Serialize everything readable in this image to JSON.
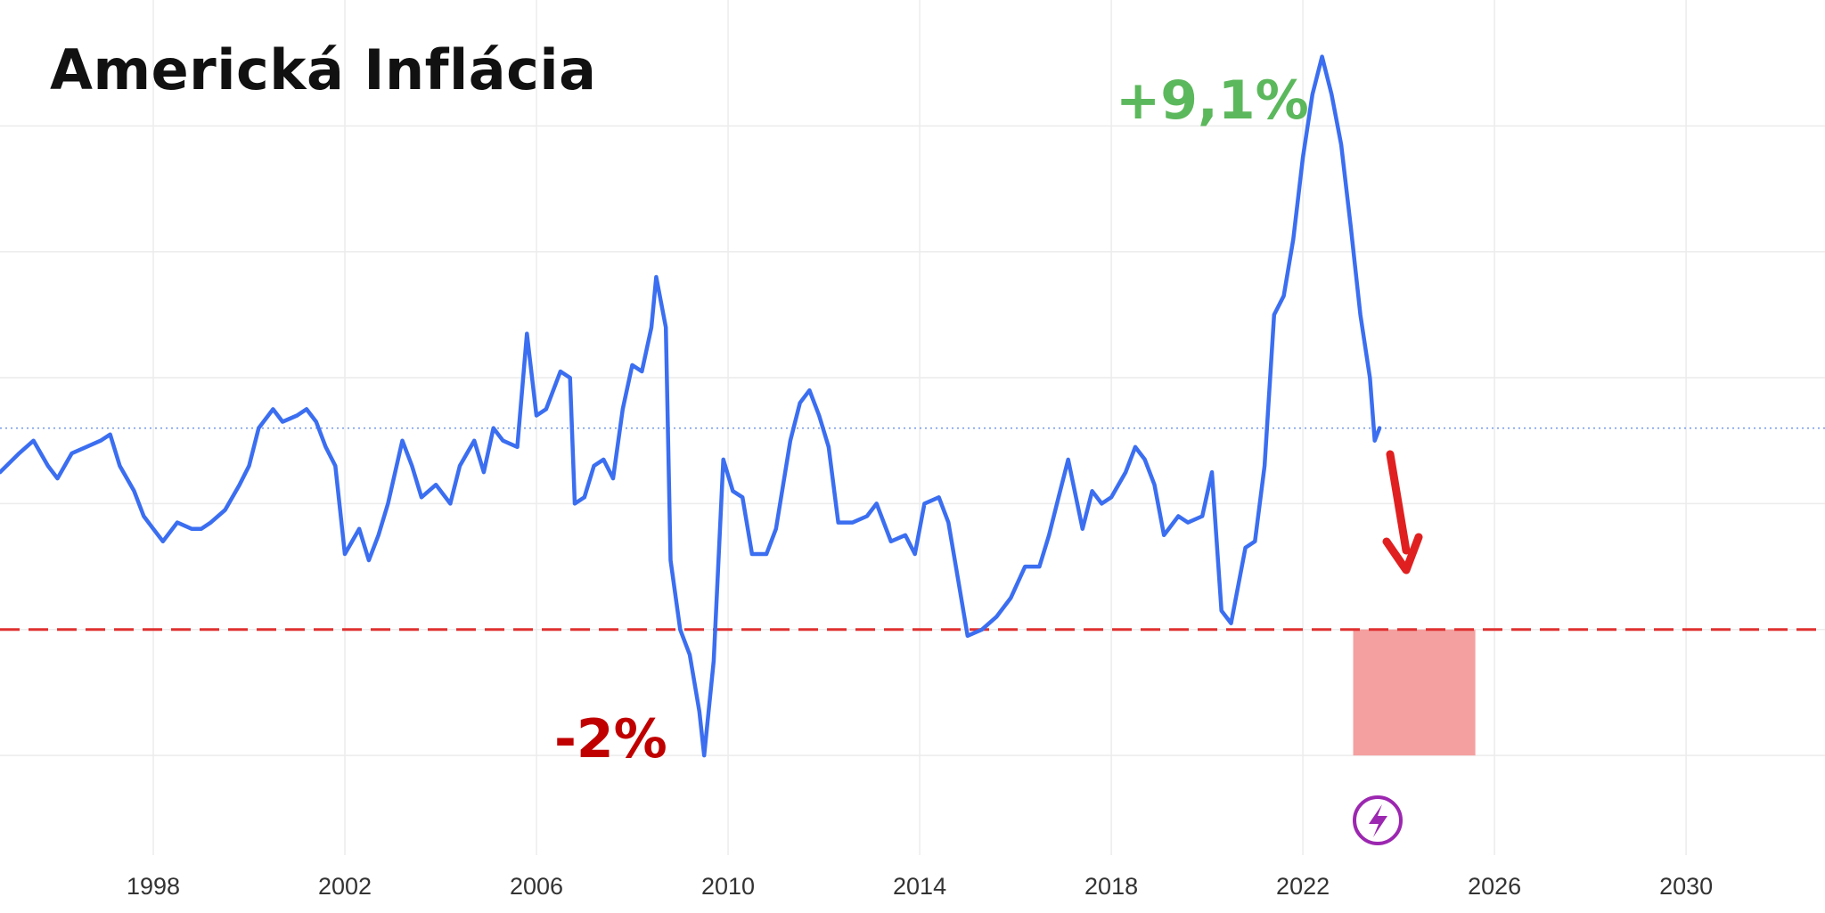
{
  "page": {
    "title": "Americká Inflácia"
  },
  "colors": {
    "line": "#3b6ef0",
    "peak_label": "#5cb85c",
    "low_label": "#c00000",
    "target_line": "#e03030",
    "target_zone": "#f4a0a0",
    "arrow": "#e02020",
    "grid": "#ececec",
    "last_value_line": "#6f95e8",
    "badge": "#9c27b0"
  },
  "annotations": {
    "peak_label": "+9,1%",
    "low_label": "-2%",
    "arrow_icon": "down-arrow-icon",
    "badge_icon": "lightning-icon"
  },
  "chart_data": {
    "type": "line",
    "title": "Americká Inflácia",
    "xlabel": "",
    "ylabel": "",
    "x_ticks": [
      "1998",
      "2002",
      "2006",
      "2010",
      "2014",
      "2018",
      "2022",
      "2026",
      "2030"
    ],
    "xlim": [
      1994.8,
      2032.9
    ],
    "ylim": [
      -3.3,
      10.0
    ],
    "grid": true,
    "reference_line": {
      "y": 0,
      "style": "dashed"
    },
    "target_zone": {
      "x": [
        2023.05,
        2025.6
      ],
      "y": [
        -2.0,
        0
      ]
    },
    "series": [
      {
        "name": "",
        "points": [
          [
            1994.8,
            2.5
          ],
          [
            1995.2,
            2.8
          ],
          [
            1995.5,
            3.0
          ],
          [
            1995.8,
            2.6
          ],
          [
            1996.0,
            2.4
          ],
          [
            1996.3,
            2.8
          ],
          [
            1996.6,
            2.9
          ],
          [
            1996.9,
            3.0
          ],
          [
            1997.1,
            3.1
          ],
          [
            1997.3,
            2.6
          ],
          [
            1997.6,
            2.2
          ],
          [
            1997.8,
            1.8
          ],
          [
            1998.0,
            1.6
          ],
          [
            1998.2,
            1.4
          ],
          [
            1998.5,
            1.7
          ],
          [
            1998.8,
            1.6
          ],
          [
            1999.0,
            1.6
          ],
          [
            1999.2,
            1.7
          ],
          [
            1999.5,
            1.9
          ],
          [
            1999.8,
            2.3
          ],
          [
            2000.0,
            2.6
          ],
          [
            2000.2,
            3.2
          ],
          [
            2000.5,
            3.5
          ],
          [
            2000.7,
            3.3
          ],
          [
            2001.0,
            3.4
          ],
          [
            2001.2,
            3.5
          ],
          [
            2001.4,
            3.3
          ],
          [
            2001.6,
            2.9
          ],
          [
            2001.8,
            2.6
          ],
          [
            2002.0,
            1.2
          ],
          [
            2002.3,
            1.6
          ],
          [
            2002.5,
            1.1
          ],
          [
            2002.7,
            1.5
          ],
          [
            2002.9,
            2.0
          ],
          [
            2003.2,
            3.0
          ],
          [
            2003.4,
            2.6
          ],
          [
            2003.6,
            2.1
          ],
          [
            2003.9,
            2.3
          ],
          [
            2004.2,
            2.0
          ],
          [
            2004.4,
            2.6
          ],
          [
            2004.7,
            3.0
          ],
          [
            2004.9,
            2.5
          ],
          [
            2005.1,
            3.2
          ],
          [
            2005.3,
            3.0
          ],
          [
            2005.6,
            2.9
          ],
          [
            2005.8,
            4.7
          ],
          [
            2006.0,
            3.4
          ],
          [
            2006.2,
            3.5
          ],
          [
            2006.5,
            4.1
          ],
          [
            2006.7,
            4.0
          ],
          [
            2006.8,
            2.0
          ],
          [
            2007.0,
            2.1
          ],
          [
            2007.2,
            2.6
          ],
          [
            2007.4,
            2.7
          ],
          [
            2007.6,
            2.4
          ],
          [
            2007.8,
            3.5
          ],
          [
            2008.0,
            4.2
          ],
          [
            2008.2,
            4.1
          ],
          [
            2008.4,
            4.8
          ],
          [
            2008.5,
            5.6
          ],
          [
            2008.7,
            4.8
          ],
          [
            2008.8,
            1.1
          ],
          [
            2009.0,
            0.0
          ],
          [
            2009.2,
            -0.4
          ],
          [
            2009.4,
            -1.3
          ],
          [
            2009.5,
            -2.0
          ],
          [
            2009.7,
            -0.5
          ],
          [
            2009.9,
            2.7
          ],
          [
            2010.1,
            2.2
          ],
          [
            2010.3,
            2.1
          ],
          [
            2010.5,
            1.2
          ],
          [
            2010.8,
            1.2
          ],
          [
            2011.0,
            1.6
          ],
          [
            2011.3,
            3.0
          ],
          [
            2011.5,
            3.6
          ],
          [
            2011.7,
            3.8
          ],
          [
            2011.9,
            3.4
          ],
          [
            2012.1,
            2.9
          ],
          [
            2012.3,
            1.7
          ],
          [
            2012.6,
            1.7
          ],
          [
            2012.9,
            1.8
          ],
          [
            2013.1,
            2.0
          ],
          [
            2013.4,
            1.4
          ],
          [
            2013.7,
            1.5
          ],
          [
            2013.9,
            1.2
          ],
          [
            2014.1,
            2.0
          ],
          [
            2014.4,
            2.1
          ],
          [
            2014.6,
            1.7
          ],
          [
            2014.8,
            0.8
          ],
          [
            2015.0,
            -0.1
          ],
          [
            2015.3,
            0.0
          ],
          [
            2015.6,
            0.2
          ],
          [
            2015.9,
            0.5
          ],
          [
            2016.2,
            1.0
          ],
          [
            2016.5,
            1.0
          ],
          [
            2016.7,
            1.5
          ],
          [
            2016.9,
            2.1
          ],
          [
            2017.1,
            2.7
          ],
          [
            2017.4,
            1.6
          ],
          [
            2017.6,
            2.2
          ],
          [
            2017.8,
            2.0
          ],
          [
            2018.0,
            2.1
          ],
          [
            2018.3,
            2.5
          ],
          [
            2018.5,
            2.9
          ],
          [
            2018.7,
            2.7
          ],
          [
            2018.9,
            2.3
          ],
          [
            2019.1,
            1.5
          ],
          [
            2019.4,
            1.8
          ],
          [
            2019.6,
            1.7
          ],
          [
            2019.9,
            1.8
          ],
          [
            2020.1,
            2.5
          ],
          [
            2020.3,
            0.3
          ],
          [
            2020.5,
            0.1
          ],
          [
            2020.8,
            1.3
          ],
          [
            2021.0,
            1.4
          ],
          [
            2021.2,
            2.6
          ],
          [
            2021.4,
            5.0
          ],
          [
            2021.6,
            5.3
          ],
          [
            2021.8,
            6.2
          ],
          [
            2022.0,
            7.5
          ],
          [
            2022.2,
            8.5
          ],
          [
            2022.4,
            9.1
          ],
          [
            2022.6,
            8.5
          ],
          [
            2022.8,
            7.7
          ],
          [
            2023.0,
            6.4
          ],
          [
            2023.2,
            5.0
          ],
          [
            2023.4,
            4.0
          ],
          [
            2023.5,
            3.0
          ],
          [
            2023.6,
            3.2
          ]
        ]
      }
    ]
  }
}
